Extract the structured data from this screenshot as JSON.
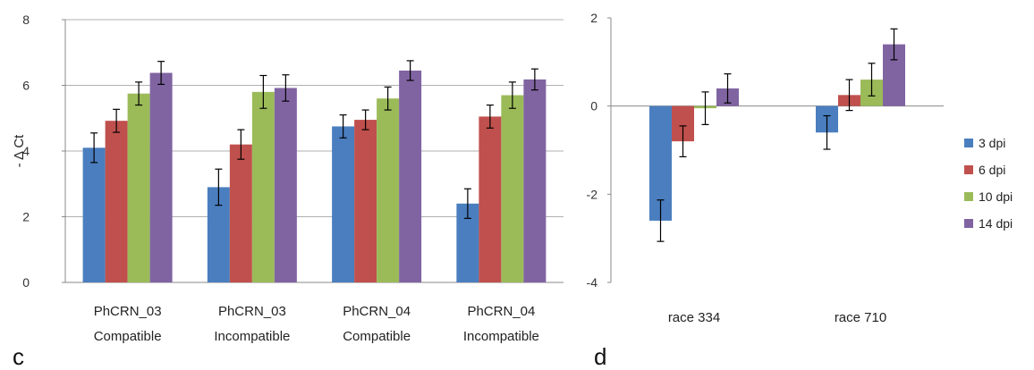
{
  "chart_data": [
    {
      "type": "bar",
      "panel_label": "c",
      "ylabel": "- Δ Ct",
      "ylim": [
        0,
        8
      ],
      "yticks": [
        0,
        2,
        4,
        6,
        8
      ],
      "categories": [
        [
          "PhCRN_03",
          "Compatible"
        ],
        [
          "PhCRN_03",
          "Incompatible"
        ],
        [
          "PhCRN_04",
          "Compatible"
        ],
        [
          "PhCRN_04",
          "Incompatible"
        ]
      ],
      "series": [
        {
          "color": "#4a7ebf",
          "values": [
            4.1,
            2.9,
            4.75,
            2.4
          ],
          "errors": [
            0.45,
            0.55,
            0.35,
            0.45
          ]
        },
        {
          "color": "#c0504d",
          "values": [
            4.92,
            4.2,
            4.95,
            5.05
          ],
          "errors": [
            0.35,
            0.45,
            0.3,
            0.35
          ]
        },
        {
          "color": "#9bbb59",
          "values": [
            5.75,
            5.8,
            5.6,
            5.7
          ],
          "errors": [
            0.35,
            0.5,
            0.35,
            0.4
          ]
        },
        {
          "color": "#8064a2",
          "values": [
            6.38,
            5.92,
            6.45,
            6.18
          ],
          "errors": [
            0.35,
            0.4,
            0.3,
            0.32
          ]
        }
      ],
      "grid": true
    },
    {
      "type": "bar",
      "panel_label": "d",
      "ylim": [
        -4,
        2
      ],
      "yticks": [
        -4,
        -2,
        0,
        2
      ],
      "categories": [
        [
          "race 334"
        ],
        [
          "race 710"
        ]
      ],
      "series": [
        {
          "name": "3 dpi",
          "color": "#4a7ebf",
          "values": [
            -2.6,
            -0.6
          ],
          "errors": [
            0.47,
            0.38
          ]
        },
        {
          "name": "6 dpi",
          "color": "#c0504d",
          "values": [
            -0.8,
            0.25
          ],
          "errors": [
            0.35,
            0.35
          ]
        },
        {
          "name": "10 dpi",
          "color": "#9bbb59",
          "values": [
            -0.05,
            0.6
          ],
          "errors": [
            0.37,
            0.37
          ]
        },
        {
          "name": "14 dpi",
          "color": "#8064a2",
          "values": [
            0.4,
            1.4
          ],
          "errors": [
            0.33,
            0.35
          ]
        }
      ],
      "legend": "right",
      "grid": false
    }
  ]
}
